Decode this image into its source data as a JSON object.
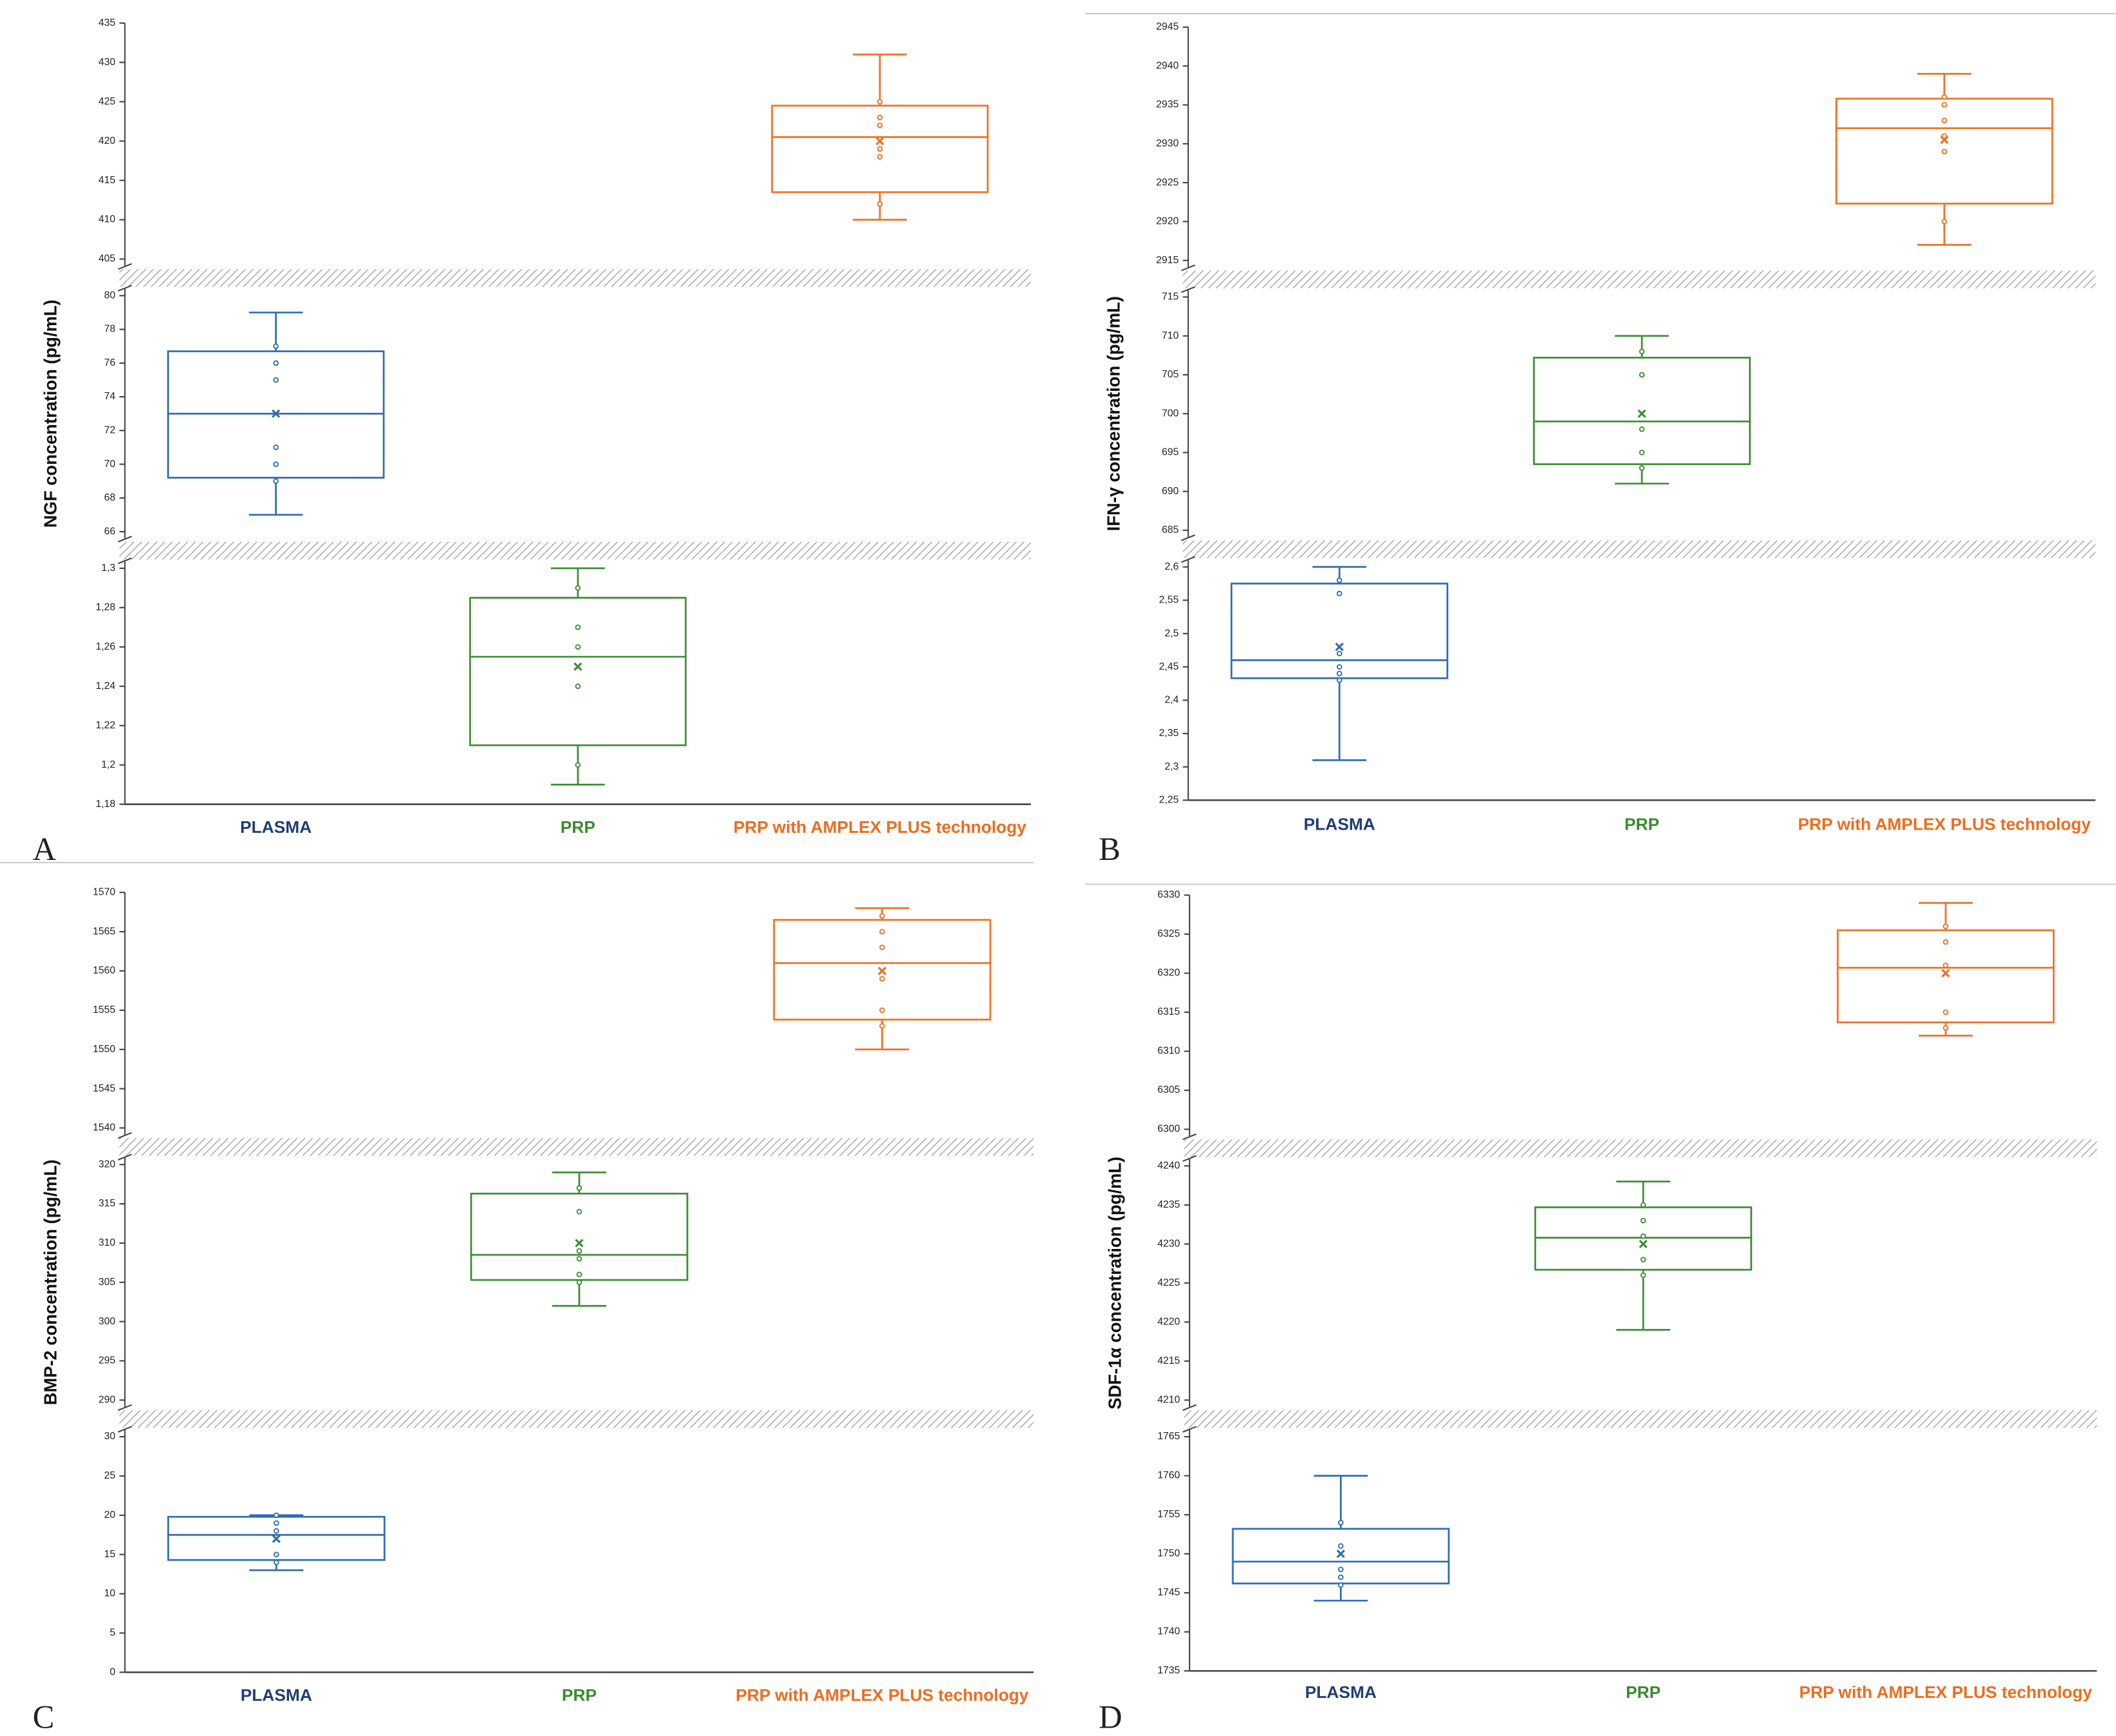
{
  "chart_data": [
    {
      "type": "box",
      "panel": "A",
      "ylabel": "NGF concentration (pg/mL)",
      "categories": [
        "PLASMA",
        "PRP",
        "PRP  with AMPLEX PLUS technology"
      ],
      "label_colors": [
        "#1f3e74",
        "#3b8b2f",
        "#ee6c1e"
      ],
      "segments": [
        {
          "ylim": [
            405,
            435
          ],
          "yticks": [
            405,
            410,
            415,
            420,
            425,
            430,
            435
          ]
        },
        {
          "ylim": [
            66,
            80
          ],
          "yticks": [
            66,
            68,
            70,
            72,
            74,
            76,
            78,
            80
          ]
        },
        {
          "ylim": [
            1.18,
            1.3
          ],
          "yticks": [
            {
              "value": 1.18,
              "label": "1,18"
            },
            {
              "value": 1.2,
              "label": "1,2"
            },
            {
              "value": 1.22,
              "label": "1,22"
            },
            {
              "value": 1.24,
              "label": "1,24"
            },
            {
              "value": 1.26,
              "label": "1,26"
            },
            {
              "value": 1.28,
              "label": "1,28"
            },
            {
              "value": 1.3,
              "label": "1,3"
            }
          ]
        }
      ],
      "boxes": [
        {
          "segment": 1,
          "color": "#2e6db4",
          "min": 67,
          "q1": 69.2,
          "median": 73,
          "q3": 76.7,
          "max": 79,
          "mean": 73,
          "points": [
            69,
            70,
            71,
            75,
            76,
            77
          ]
        },
        {
          "segment": 2,
          "color": "#3e8e35",
          "min": 1.19,
          "q1": 1.21,
          "median": 1.255,
          "q3": 1.285,
          "max": 1.3,
          "mean": 1.25,
          "points": [
            1.2,
            1.24,
            1.26,
            1.27,
            1.29
          ]
        },
        {
          "segment": 0,
          "color": "#f07022",
          "min": 410,
          "q1": 413.5,
          "median": 420.5,
          "q3": 424.5,
          "max": 431,
          "mean": 420,
          "points": [
            412,
            418,
            419,
            422,
            423,
            425
          ]
        }
      ]
    },
    {
      "type": "box",
      "panel": "B",
      "ylabel": "IFN-γ concentration (pg/mL)",
      "categories": [
        "PLASMA",
        "PRP",
        "PRP  with AMPLEX PLUS technology"
      ],
      "label_colors": [
        "#1f3e74",
        "#3b8b2f",
        "#ee6c1e"
      ],
      "segments": [
        {
          "ylim": [
            2915,
            2945
          ],
          "yticks": [
            2915,
            2920,
            2925,
            2930,
            2935,
            2940,
            2945
          ]
        },
        {
          "ylim": [
            685,
            715
          ],
          "yticks": [
            685,
            690,
            695,
            700,
            705,
            710,
            715
          ]
        },
        {
          "ylim": [
            2.25,
            2.6
          ],
          "yticks": [
            {
              "value": 2.25,
              "label": "2,25"
            },
            {
              "value": 2.3,
              "label": "2,3"
            },
            {
              "value": 2.35,
              "label": "2,35"
            },
            {
              "value": 2.4,
              "label": "2,4"
            },
            {
              "value": 2.45,
              "label": "2,45"
            },
            {
              "value": 2.5,
              "label": "2,5"
            },
            {
              "value": 2.55,
              "label": "2,55"
            },
            {
              "value": 2.6,
              "label": "2,6"
            }
          ]
        }
      ],
      "boxes": [
        {
          "segment": 2,
          "color": "#2e6db4",
          "min": 2.31,
          "q1": 2.433,
          "median": 2.46,
          "q3": 2.575,
          "max": 2.6,
          "mean": 2.48,
          "points": [
            2.43,
            2.44,
            2.45,
            2.47,
            2.56,
            2.58
          ]
        },
        {
          "segment": 1,
          "color": "#3e8e35",
          "min": 691,
          "q1": 693.5,
          "median": 699,
          "q3": 707.2,
          "max": 710,
          "mean": 700,
          "points": [
            693,
            695,
            698,
            705,
            708
          ]
        },
        {
          "segment": 0,
          "color": "#f07022",
          "min": 2917,
          "q1": 2922.3,
          "median": 2932,
          "q3": 2935.8,
          "max": 2939,
          "mean": 2930.5,
          "points": [
            2920,
            2929,
            2931,
            2933,
            2935,
            2936
          ]
        }
      ]
    },
    {
      "type": "box",
      "panel": "C",
      "ylabel": "BMP-2 concentration (pg/mL)",
      "categories": [
        "PLASMA",
        "PRP",
        "PRP  with AMPLEX PLUS technology"
      ],
      "label_colors": [
        "#1f3e74",
        "#3b8b2f",
        "#ee6c1e"
      ],
      "segments": [
        {
          "ylim": [
            1540,
            1570
          ],
          "yticks": [
            1540,
            1545,
            1550,
            1555,
            1560,
            1565,
            1570
          ]
        },
        {
          "ylim": [
            290,
            320
          ],
          "yticks": [
            290,
            295,
            300,
            305,
            310,
            315,
            320
          ]
        },
        {
          "ylim": [
            0,
            30
          ],
          "yticks": [
            0,
            5,
            10,
            15,
            20,
            25,
            30
          ]
        }
      ],
      "boxes": [
        {
          "segment": 2,
          "color": "#2e6db4",
          "min": 13,
          "q1": 14.3,
          "median": 17.5,
          "q3": 19.8,
          "max": 20,
          "mean": 17,
          "points": [
            14,
            15,
            18,
            19,
            20
          ]
        },
        {
          "segment": 1,
          "color": "#3e8e35",
          "min": 302,
          "q1": 305.3,
          "median": 308.5,
          "q3": 316.3,
          "max": 319,
          "mean": 310,
          "points": [
            305,
            306,
            308,
            309,
            314,
            317
          ]
        },
        {
          "segment": 0,
          "color": "#f07022",
          "min": 1550,
          "q1": 1553.8,
          "median": 1561,
          "q3": 1566.5,
          "max": 1568,
          "mean": 1560,
          "points": [
            1553,
            1555,
            1559,
            1563,
            1565,
            1567
          ]
        }
      ]
    },
    {
      "type": "box",
      "panel": "D",
      "ylabel": "SDF-1α concentration (pg/mL)",
      "categories": [
        "PLASMA",
        "PRP",
        "PRP  with AMPLEX PLUS technology"
      ],
      "label_colors": [
        "#1f3e74",
        "#3b8b2f",
        "#ee6c1e"
      ],
      "segments": [
        {
          "ylim": [
            6300,
            6330
          ],
          "yticks": [
            6300,
            6305,
            6310,
            6315,
            6320,
            6325,
            6330
          ]
        },
        {
          "ylim": [
            4210,
            4240
          ],
          "yticks": [
            4210,
            4215,
            4220,
            4225,
            4230,
            4235,
            4240
          ]
        },
        {
          "ylim": [
            1735,
            1765
          ],
          "yticks": [
            1735,
            1740,
            1745,
            1750,
            1755,
            1760,
            1765
          ]
        }
      ],
      "boxes": [
        {
          "segment": 2,
          "color": "#2e6db4",
          "min": 1744,
          "q1": 1746.2,
          "median": 1749,
          "q3": 1753.2,
          "max": 1760,
          "mean": 1750,
          "points": [
            1746,
            1747,
            1748,
            1751,
            1754
          ]
        },
        {
          "segment": 1,
          "color": "#3e8e35",
          "min": 4219,
          "q1": 4226.7,
          "median": 4230.8,
          "q3": 4234.7,
          "max": 4238,
          "mean": 4230,
          "points": [
            4226,
            4228,
            4231,
            4233,
            4235
          ]
        },
        {
          "segment": 0,
          "color": "#f07022",
          "min": 6312,
          "q1": 6313.7,
          "median": 6320.7,
          "q3": 6325.5,
          "max": 6329,
          "mean": 6320,
          "points": [
            6313,
            6315,
            6321,
            6324,
            6326
          ]
        }
      ]
    }
  ]
}
